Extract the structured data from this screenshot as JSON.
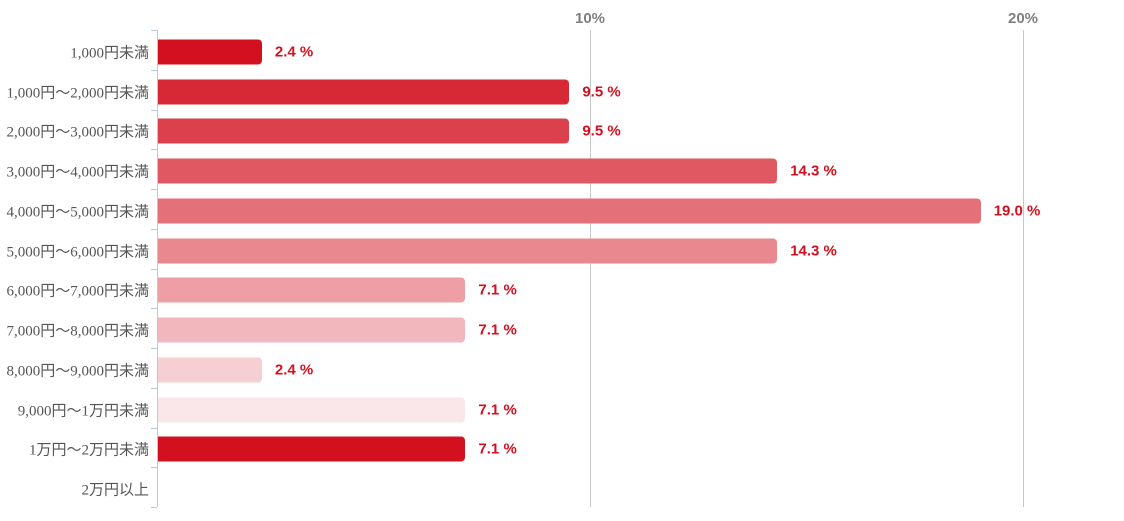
{
  "chart_data": {
    "type": "bar",
    "orientation": "horizontal",
    "title": "",
    "xlabel": "",
    "ylabel": "",
    "unit": "%",
    "categories": [
      "1,000円未満",
      "1,000円〜2,000円未満",
      "2,000円〜3,000円未満",
      "3,000円〜4,000円未満",
      "4,000円〜5,000円未満",
      "5,000円〜6,000円未満",
      "6,000円〜7,000円未満",
      "7,000円〜8,000円未満",
      "8,000円〜9,000円未満",
      "9,000円〜1万円未満",
      "1万円〜2万円未満",
      "2万円以上"
    ],
    "values": [
      2.4,
      9.5,
      9.5,
      14.3,
      19.0,
      14.3,
      7.1,
      7.1,
      2.4,
      7.1,
      7.1,
      0
    ],
    "value_labels": [
      "2.4 %",
      "9.5 %",
      "9.5 %",
      "14.3 %",
      "19.0 %",
      "14.3 %",
      "7.1 %",
      "7.1 %",
      "2.4 %",
      "7.1 %",
      "7.1 %",
      ""
    ],
    "bar_colors": [
      "#d2101f",
      "#d62835",
      "#db404c",
      "#df5862",
      "#e47079",
      "#e9888f",
      "#ed9fa5",
      "#f1b7bc",
      "#f6cfd2",
      "#fae7e9",
      "#d2101f",
      "#ffffff"
    ],
    "x_axis": {
      "min": 0,
      "max": 22.3,
      "ticks": [
        {
          "label": "10%",
          "value": 10
        },
        {
          "label": "20%",
          "value": 20
        }
      ]
    },
    "grid": true,
    "legend": "none",
    "colors": {
      "value_label": "#d2101f",
      "axis_tick_label": "#7f7f7f",
      "category_label": "#555555",
      "axis_line": "#b9cbd4",
      "gridline": "#c8c8c8",
      "background": "#ffffff"
    }
  }
}
